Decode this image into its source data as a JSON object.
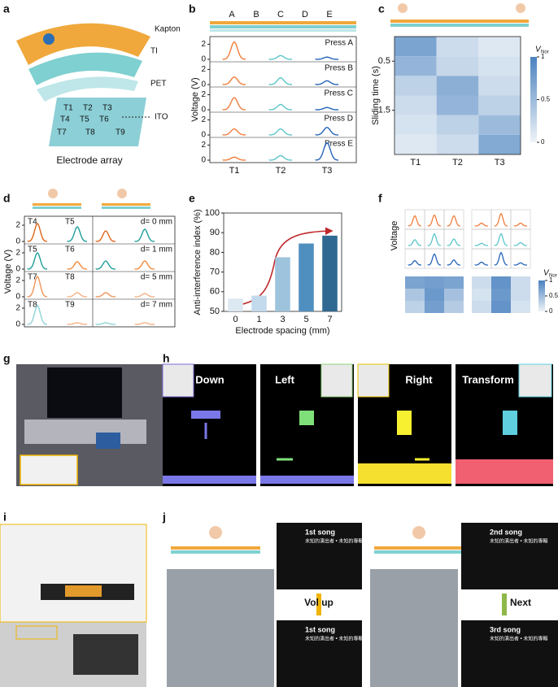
{
  "panel_letters": [
    "a",
    "b",
    "c",
    "d",
    "e",
    "f",
    "g",
    "h",
    "i",
    "j"
  ],
  "panel_a": {
    "labels": [
      "Kapton",
      "TI",
      "PET",
      "ITO"
    ],
    "electrodes": [
      "T1",
      "T2",
      "T3",
      "T4",
      "T5",
      "T6",
      "T7",
      "T8",
      "T9"
    ],
    "caption": "Electrode array"
  },
  "chart_data": [
    {
      "type": "line",
      "ylabel": "Voltage (V)",
      "top_labels": [
        "A",
        "B",
        "C",
        "D",
        "E"
      ],
      "categories": [
        "T1",
        "T2",
        "T3"
      ],
      "colors": [
        "#f07d3c",
        "#5cc5c8",
        "#2563b8"
      ],
      "ylim": [
        0,
        2.8
      ],
      "yticks": [
        0,
        2
      ],
      "series": [
        {
          "name": "Press A",
          "values": [
            2.3,
            0.5,
            0.3
          ]
        },
        {
          "name": "Press B",
          "values": [
            1.0,
            0.9,
            0.5
          ]
        },
        {
          "name": "Press C",
          "values": [
            1.6,
            0.7,
            0.3
          ]
        },
        {
          "name": "Press D",
          "values": [
            0.8,
            0.8,
            1.0
          ]
        },
        {
          "name": "Press E",
          "values": [
            0.4,
            0.6,
            2.3
          ]
        }
      ]
    },
    {
      "type": "heatmap",
      "ylabel": "Sliding time (s)",
      "categories": [
        "T1",
        "T2",
        "T3"
      ],
      "ylim": [
        0,
        2.4
      ],
      "yticks": [
        0.5,
        1.5
      ],
      "clim": [
        0,
        1
      ],
      "cbar_ticks": [
        0,
        0.5,
        1
      ],
      "cbar_label": "V",
      "cbar_label_sub": "Nor",
      "matrices": [
        [
          [
            0.7,
            0.2,
            0.1
          ],
          [
            0.55,
            0.25,
            0.15
          ],
          [
            0.3,
            0.6,
            0.2
          ],
          [
            0.2,
            0.55,
            0.3
          ],
          [
            0.15,
            0.3,
            0.5
          ],
          [
            0.1,
            0.2,
            0.65
          ]
        ]
      ]
    },
    {
      "type": "multiples",
      "ylabel": "Voltage (V)",
      "ylim": [
        0,
        2.8
      ],
      "yticks": [
        0,
        2
      ],
      "panels": [
        {
          "names": [
            "T4",
            "T5"
          ],
          "colors": [
            "#e0661c",
            "#1f9e9a"
          ],
          "label": "d= 0 mm",
          "values": [
            [
              2.2,
              1.8
            ],
            [
              1.3,
              1.5
            ]
          ]
        },
        {
          "names": [
            "T5",
            "T6"
          ],
          "colors": [
            "#1f9e9a",
            "#f08a3a"
          ],
          "label": "d= 1 mm",
          "values": [
            [
              2.0,
              0.9
            ],
            [
              1.0,
              1.0
            ]
          ]
        },
        {
          "names": [
            "T7",
            "T8"
          ],
          "colors": [
            "#f0955a",
            "#f5b184"
          ],
          "label": "d= 5 mm",
          "values": [
            [
              2.5,
              0.5
            ],
            [
              0.5,
              0.4
            ]
          ]
        },
        {
          "names": [
            "T8",
            "T9"
          ],
          "colors": [
            "#8fd3d6",
            "#f5b184"
          ],
          "label": "d= 7 mm",
          "values": [
            [
              2.3,
              0.2
            ],
            [
              0.2,
              0.2
            ]
          ]
        }
      ]
    },
    {
      "type": "bar",
      "xlabel": "Electrode spacing (mm)",
      "ylabel": "Anti-interference index (%)",
      "categories": [
        "0",
        "1",
        "3",
        "5",
        "7"
      ],
      "values": [
        56.5,
        58,
        77.5,
        84.5,
        88.5
      ],
      "colors": [
        "#dce8f2",
        "#c3d9ec",
        "#9ec3dd",
        "#4f8fc0",
        "#2f6991"
      ],
      "ylim": [
        50,
        100
      ],
      "yticks": [
        50,
        60,
        70,
        80,
        90,
        100
      ]
    },
    {
      "type": "heatmap",
      "ylabel": "Voltage",
      "clim": [
        0,
        1
      ],
      "cbar_ticks": [
        0,
        0.5,
        1
      ],
      "cbar_label": "V",
      "cbar_label_sub": "Nor",
      "matrices": [
        [
          [
            0.7,
            0.75,
            0.7
          ],
          [
            0.4,
            0.8,
            0.45
          ],
          [
            0.3,
            0.75,
            0.35
          ]
        ],
        [
          [
            0.2,
            0.85,
            0.2
          ],
          [
            0.15,
            0.8,
            0.2
          ],
          [
            0.2,
            0.85,
            0.15
          ]
        ]
      ]
    }
  ],
  "panel_h": {
    "titles": [
      "Down",
      "Left",
      "Right",
      "Transform"
    ]
  },
  "panel_j": {
    "screens": [
      {
        "title": "1st song",
        "subtitle": "未知的演出者 • 未知的專輯"
      },
      {
        "title": "1st song",
        "subtitle": "未知的演出者 • 未知的專輯"
      },
      {
        "title": "2nd song",
        "subtitle": "未知的演出者 • 未知的專輯"
      },
      {
        "title": "3rd song",
        "subtitle": "未知的演出者 • 未知的專輯"
      }
    ],
    "actions": [
      "Vol up",
      "Next"
    ]
  }
}
